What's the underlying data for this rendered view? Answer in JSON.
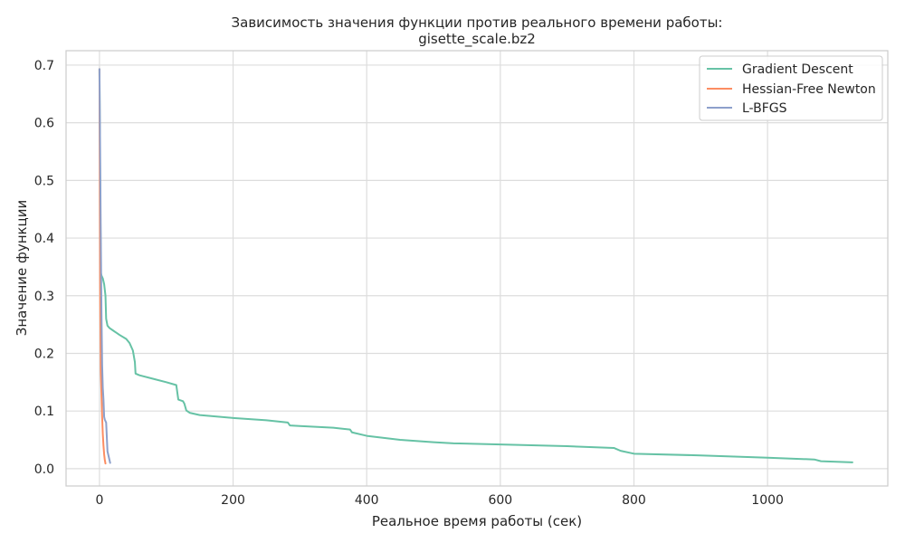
{
  "chart_data": {
    "type": "line",
    "title": [
      "Зависимость значения функции против реального времени работы:",
      "gisette_scale.bz2"
    ],
    "xlabel": "Реальное время работы (сек)",
    "ylabel": "Значение функции",
    "xlim": [
      -50,
      1180
    ],
    "ylim": [
      -0.03,
      0.725
    ],
    "xticks": [
      0,
      200,
      400,
      600,
      800,
      1000
    ],
    "yticks": [
      0.0,
      0.1,
      0.2,
      0.3,
      0.4,
      0.5,
      0.6,
      0.7
    ],
    "xtick_labels": [
      "0",
      "200",
      "400",
      "600",
      "800",
      "1000"
    ],
    "ytick_labels": [
      "0.0",
      "0.1",
      "0.2",
      "0.3",
      "0.4",
      "0.5",
      "0.6",
      "0.7"
    ],
    "grid": true,
    "legend_position": "top-right",
    "series": [
      {
        "name": "Gradient Descent",
        "color": "#66c2a5",
        "x": [
          0,
          1,
          2,
          3,
          5,
          7,
          9,
          10,
          12,
          15,
          20,
          30,
          40,
          45,
          50,
          53,
          54,
          56,
          60,
          80,
          100,
          115,
          118,
          120,
          125,
          127,
          130,
          135,
          150,
          200,
          250,
          282,
          285,
          300,
          350,
          375,
          378,
          400,
          450,
          500,
          530,
          600,
          700,
          770,
          780,
          800,
          900,
          1000,
          1070,
          1080,
          1127
        ],
        "y": [
          0.693,
          0.5,
          0.34,
          0.335,
          0.33,
          0.32,
          0.3,
          0.26,
          0.248,
          0.244,
          0.24,
          0.232,
          0.225,
          0.218,
          0.205,
          0.185,
          0.165,
          0.164,
          0.162,
          0.156,
          0.15,
          0.145,
          0.12,
          0.119,
          0.117,
          0.113,
          0.101,
          0.097,
          0.093,
          0.088,
          0.084,
          0.08,
          0.075,
          0.074,
          0.071,
          0.068,
          0.063,
          0.057,
          0.05,
          0.046,
          0.044,
          0.042,
          0.039,
          0.036,
          0.031,
          0.026,
          0.023,
          0.019,
          0.016,
          0.013,
          0.011
        ]
      },
      {
        "name": "Hessian-Free Newton",
        "color": "#fc8d62",
        "x": [
          0,
          0.5,
          1,
          1.5,
          2,
          3,
          4,
          5,
          6,
          7,
          8,
          9
        ],
        "y": [
          0.693,
          0.5,
          0.33,
          0.24,
          0.17,
          0.13,
          0.09,
          0.06,
          0.04,
          0.025,
          0.015,
          0.009
        ]
      },
      {
        "name": "L-BFGS",
        "color": "#8da0cb",
        "x": [
          0,
          1,
          2,
          3,
          4,
          5,
          6,
          7,
          8,
          10,
          12,
          14,
          16
        ],
        "y": [
          0.693,
          0.55,
          0.4,
          0.27,
          0.18,
          0.14,
          0.12,
          0.09,
          0.085,
          0.08,
          0.03,
          0.02,
          0.01
        ]
      }
    ]
  }
}
